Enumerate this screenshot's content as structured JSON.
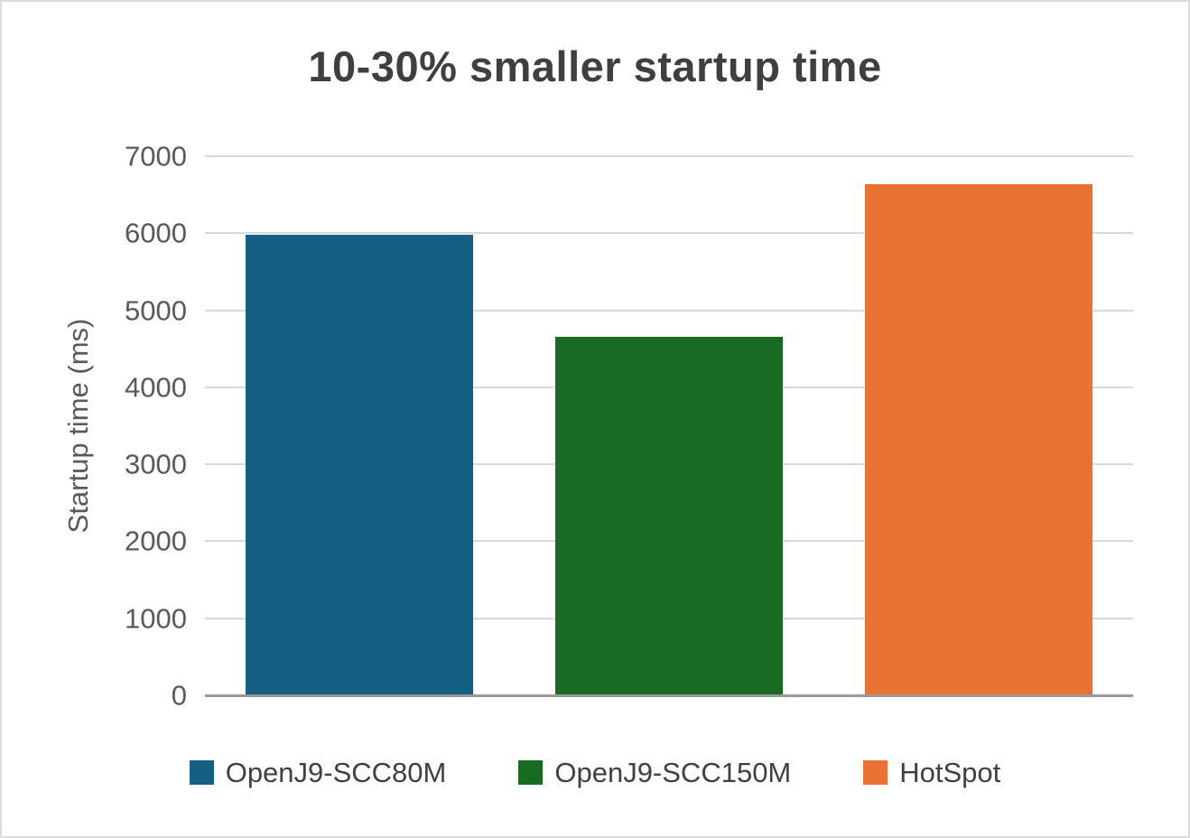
{
  "chart_data": {
    "type": "bar",
    "title": "10-30% smaller startup time",
    "xlabel": "",
    "ylabel": "Startup time (ms)",
    "categories": [
      "OpenJ9-SCC80M",
      "OpenJ9-SCC150M",
      "HotSpot"
    ],
    "values": [
      5980,
      4660,
      6640
    ],
    "colors": [
      "#156082",
      "#196B24",
      "#E97132"
    ],
    "ylim": [
      0,
      7000
    ],
    "yticks": [
      0,
      1000,
      2000,
      3000,
      4000,
      5000,
      6000,
      7000
    ],
    "grid": "horizontal",
    "legend_position": "bottom"
  }
}
